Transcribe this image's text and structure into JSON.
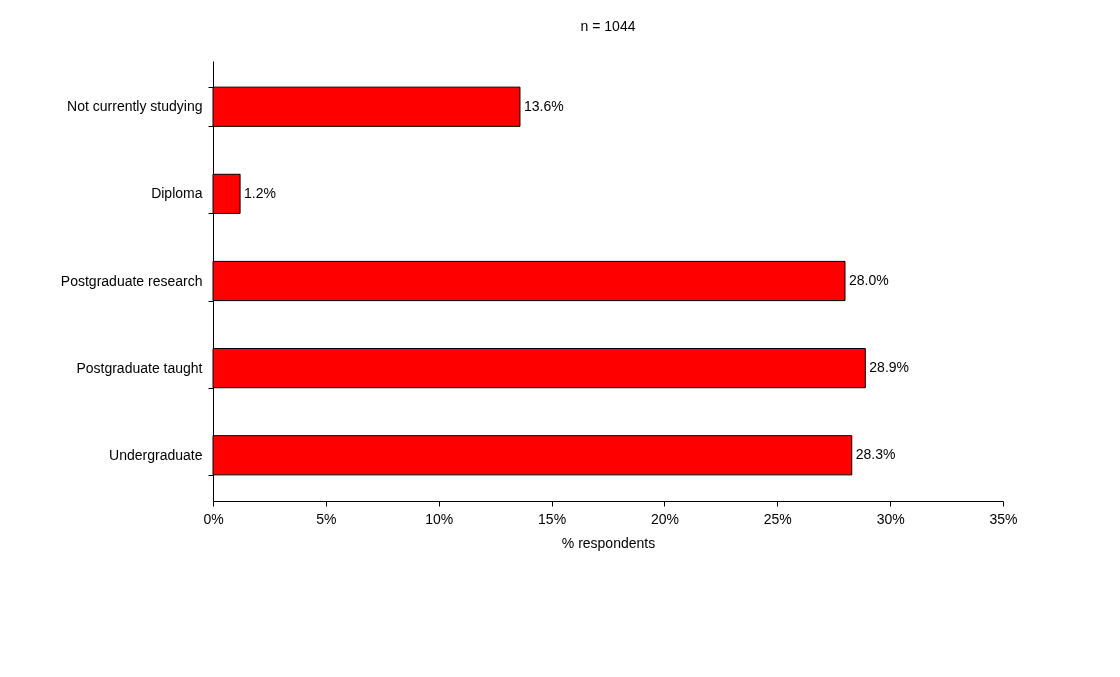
{
  "chart_data": {
    "type": "bar",
    "orientation": "horizontal",
    "title": "n = 1044",
    "xlabel": "% respondents",
    "categories": [
      "Not currently studying",
      "Diploma",
      "Postgraduate research",
      "Postgraduate taught",
      "Undergraduate"
    ],
    "values": [
      13.6,
      1.2,
      28.0,
      28.9,
      28.3
    ],
    "value_labels": [
      "13.6%",
      "1.2%",
      "28.0%",
      "28.9%",
      "28.3%"
    ],
    "color": "#ff0000",
    "xlim": [
      0,
      35
    ],
    "xticks": [
      {
        "value": 0,
        "label": "0%"
      },
      {
        "value": 5,
        "label": "5%"
      },
      {
        "value": 10,
        "label": "10%"
      },
      {
        "value": 15,
        "label": "15%"
      },
      {
        "value": 20,
        "label": "20%"
      },
      {
        "value": 25,
        "label": "25%"
      },
      {
        "value": 30,
        "label": "30%"
      },
      {
        "value": 35,
        "label": "35%"
      }
    ],
    "grid": false
  }
}
